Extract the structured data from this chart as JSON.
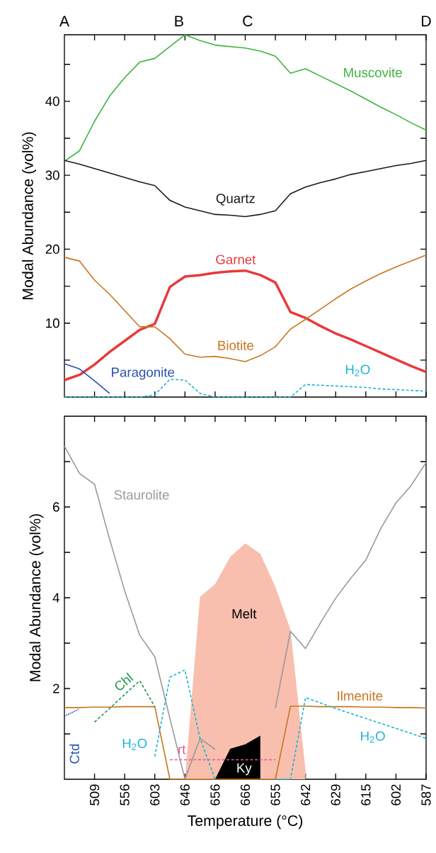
{
  "chart_data": [
    {
      "type": "line",
      "ylabel": "Modal Abundance (vol%)",
      "ylim": [
        0,
        49
      ],
      "tick_labels": "y",
      "categories": [
        null,
        null,
        null,
        null,
        null,
        null,
        null,
        null,
        null,
        null,
        null,
        null,
        null,
        null,
        null,
        null,
        null,
        null,
        null,
        null,
        null,
        null,
        null,
        null,
        null
      ],
      "yticks": [
        {
          "value": 5,
          "label": null
        },
        10,
        {
          "value": 15,
          "label": null
        },
        20,
        {
          "value": 25,
          "label": null
        },
        30,
        {
          "value": 35,
          "label": null
        },
        40,
        {
          "value": 45,
          "label": null
        }
      ],
      "annotations": [
        "A",
        "B",
        "C",
        "D"
      ],
      "series": [
        {
          "name": "Muscovite",
          "color": "#3cb43c",
          "line_style": "solid",
          "values": [
            31.9,
            33.3,
            37.3,
            40.7,
            43.2,
            45.3,
            45.8,
            47.4,
            49.0,
            48.2,
            47.6,
            47.4,
            47.2,
            46.8,
            46.1,
            43.8,
            44.4,
            43.4,
            42.4,
            41.4,
            40.3,
            39.2,
            38.2,
            37.1,
            36.1
          ]
        },
        {
          "name": "Quartz",
          "color": "#1a1a1a",
          "line_style": "solid",
          "values": [
            32.0,
            31.5,
            30.9,
            30.3,
            29.7,
            29.1,
            28.6,
            26.6,
            25.7,
            25.2,
            24.7,
            24.6,
            24.4,
            24.7,
            25.2,
            27.5,
            28.4,
            29.0,
            29.5,
            30.1,
            30.5,
            30.9,
            31.3,
            31.6,
            32.0
          ]
        },
        {
          "name": "Garnet",
          "color": "#e8393a",
          "line_style": "solid",
          "values": [
            2.3,
            3.0,
            4.4,
            6.1,
            7.6,
            9.1,
            9.9,
            14.9,
            16.3,
            16.5,
            16.8,
            17.0,
            17.1,
            16.5,
            15.5,
            11.5,
            10.7,
            9.6,
            8.6,
            7.8,
            6.9,
            6.0,
            5.1,
            4.2,
            3.4
          ]
        },
        {
          "name": "Biotite",
          "color": "#c8761e",
          "line_style": "solid",
          "values": [
            18.9,
            18.4,
            15.8,
            13.9,
            11.7,
            9.5,
            9.5,
            7.9,
            5.8,
            5.4,
            5.5,
            5.2,
            4.8,
            5.6,
            6.8,
            9.2,
            10.5,
            11.9,
            13.3,
            14.6,
            15.7,
            16.7,
            17.6,
            18.4,
            19.2
          ]
        },
        {
          "name": "Paragonite",
          "color": "#2850b4",
          "line_style": "solid",
          "values": [
            4.5,
            3.8,
            2.2,
            0.5,
            null,
            null,
            null,
            null,
            null,
            null,
            null,
            null,
            null,
            null,
            null,
            null,
            null,
            null,
            null,
            null,
            null,
            null,
            null,
            null,
            null
          ]
        },
        {
          "name": "H$_{2}$O",
          "color": "#1ab4d4",
          "line_style": "dashed",
          "values": [
            0,
            0,
            0,
            0,
            0,
            0,
            0.3,
            2.4,
            2.3,
            0.5,
            0,
            0,
            0,
            0,
            0,
            0,
            1.7,
            1.6,
            1.5,
            1.4,
            1.3,
            1.1,
            1.0,
            0.9,
            0.8
          ]
        }
      ]
    },
    {
      "type": "line",
      "ylabel": "Modal Abundance (vol%)",
      "xlabel": "Temperature (°C)",
      "ylim": [
        0,
        8
      ],
      "categories": [
        null,
        null,
        "509",
        null,
        "556",
        null,
        "603",
        null,
        "646",
        null,
        "656",
        null,
        "666",
        null,
        "655",
        null,
        "642",
        null,
        "629",
        null,
        "615",
        null,
        "602",
        null,
        "587"
      ],
      "yticks": [
        {
          "value": 1,
          "label": null
        },
        2,
        {
          "value": 3,
          "label": null
        },
        4,
        {
          "value": 5,
          "label": null
        },
        6,
        {
          "value": 7,
          "label": null
        }
      ],
      "series": [
        {
          "name": "Melt",
          "type": "area",
          "color": "#f8bfae",
          "values": [
            null,
            null,
            null,
            null,
            null,
            null,
            null,
            null,
            0,
            4.02,
            4.3,
            4.9,
            5.2,
            4.97,
            4.24,
            3.3,
            0.2,
            null,
            null,
            null,
            null,
            null,
            null,
            null,
            null
          ]
        },
        {
          "name": "Ky",
          "type": "area",
          "color": "#000000",
          "values": [
            null,
            null,
            null,
            null,
            null,
            null,
            null,
            null,
            null,
            null,
            0,
            0.67,
            0.77,
            0.96,
            null,
            null,
            null,
            null,
            null,
            null,
            null,
            null,
            null,
            null,
            null
          ]
        },
        {
          "name": "Staurolite",
          "color": "#9a9a9a",
          "line_style": "solid",
          "values": [
            7.34,
            6.74,
            6.5,
            5.29,
            4.15,
            3.17,
            2.7,
            1.34,
            0,
            0.9,
            0.66,
            null,
            null,
            null,
            1.57,
            3.26,
            2.88,
            3.45,
            3.99,
            4.43,
            4.83,
            5.53,
            6.09,
            6.47,
            6.98
          ]
        },
        {
          "name": "Ilmenite",
          "color": "#c8761e",
          "line_style": "solid",
          "values": [
            1.58,
            1.58,
            1.59,
            1.59,
            1.6,
            1.6,
            1.6,
            0,
            0,
            0,
            0,
            0,
            0,
            0,
            0,
            1.61,
            1.61,
            1.6,
            1.6,
            1.6,
            1.59,
            1.59,
            1.58,
            1.58,
            1.57
          ]
        },
        {
          "name": "Chl",
          "color": "#1b9a4a",
          "line_style": "dashed",
          "values": [
            null,
            null,
            1.26,
            1.56,
            1.87,
            2.17,
            1.6,
            null,
            null,
            null,
            null,
            null,
            null,
            null,
            null,
            null,
            null,
            null,
            null,
            null,
            null,
            null,
            null,
            null,
            null
          ]
        },
        {
          "name": "Ctd",
          "color": "#1f4fb0",
          "line_style": "dotted",
          "values": [
            1.39,
            1.55,
            null,
            null,
            null,
            null,
            null,
            null,
            null,
            null,
            null,
            null,
            null,
            null,
            null,
            null,
            null,
            null,
            null,
            null,
            null,
            null,
            null,
            null,
            null
          ]
        },
        {
          "name": "rt",
          "color": "#e8559a",
          "line_style": "dashed",
          "values": [
            null,
            null,
            null,
            null,
            null,
            null,
            null,
            0.43,
            0.43,
            0.43,
            0.43,
            0.43,
            0.43,
            0.43,
            0.43,
            null,
            null,
            null,
            null,
            null,
            null,
            null,
            null,
            null,
            null
          ]
        },
        {
          "name": "H$_{2}$O",
          "color": "#1ab4d4",
          "line_style": "dashed",
          "values": [
            null,
            null,
            null,
            null,
            null,
            null,
            0.5,
            2.25,
            2.41,
            0.9,
            0,
            null,
            null,
            null,
            0,
            0,
            1.8,
            1.68,
            1.56,
            1.45,
            1.34,
            1.23,
            1.12,
            1.01,
            0.9
          ]
        }
      ]
    }
  ]
}
